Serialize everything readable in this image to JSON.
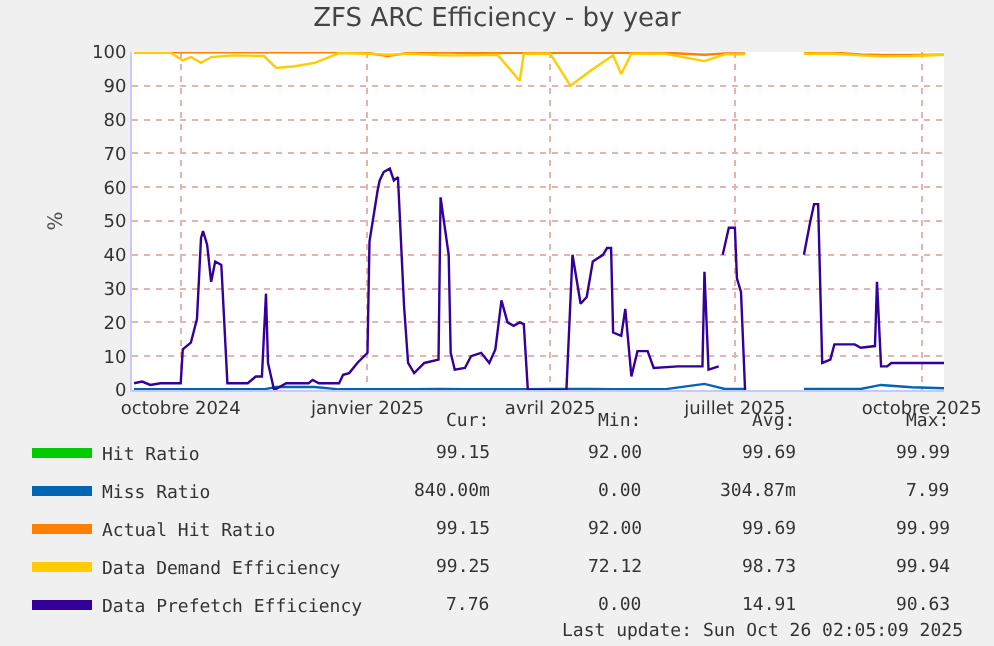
{
  "chart_data": {
    "type": "line",
    "title": "ZFS ARC Efficiency - by year",
    "ylabel": "%",
    "x": [
      "2024-09-22",
      "2024-10-10",
      "2024-10-16",
      "2024-10-20",
      "2024-10-25",
      "2024-10-30",
      "2024-11-10",
      "2024-11-25",
      "2024-12-01",
      "2024-12-10",
      "2024-12-20",
      "2025-01-01",
      "2025-01-15",
      "2025-01-25",
      "2025-02-05",
      "2025-02-20",
      "2025-03-05",
      "2025-03-20",
      "2025-03-31",
      "2025-04-02",
      "2025-04-15",
      "2025-04-25",
      "2025-05-05",
      "2025-05-16",
      "2025-05-20",
      "2025-05-25",
      "2025-06-10",
      "2025-06-30",
      "2025-07-10",
      "2025-07-20",
      "2025-07-21",
      "2025-08-18",
      "2025-09-01",
      "2025-09-15",
      "2025-09-25",
      "2025-10-10",
      "2025-10-26"
    ],
    "series": [
      {
        "name": "Hit Ratio",
        "color": "#00cc00",
        "values": [
          null,
          null,
          null,
          null,
          null,
          null,
          null,
          null,
          null,
          null,
          null,
          null,
          null,
          null,
          null,
          null,
          null,
          null,
          null,
          null,
          null,
          null,
          null,
          null,
          null,
          null,
          null,
          null,
          null,
          null,
          null,
          null,
          null,
          null,
          null,
          null,
          null
        ]
      },
      {
        "name": "Miss Ratio",
        "color": "#0066b3",
        "values": [
          0.2,
          0.2,
          0.2,
          0.2,
          0.2,
          0.2,
          0.2,
          0.2,
          0.9,
          0.9,
          0.9,
          0.2,
          0.2,
          0.2,
          0.2,
          0.3,
          0.2,
          0.2,
          0.2,
          0.2,
          0.3,
          0.3,
          0.3,
          0.2,
          0.2,
          0.2,
          0.2,
          1.8,
          0.3,
          0.3,
          null,
          0.3,
          0.3,
          0.3,
          1.5,
          0.8,
          0.5
        ]
      },
      {
        "name": "Actual Hit Ratio",
        "color": "#ff8000",
        "values": [
          99.9,
          99.9,
          99.9,
          99.9,
          99.9,
          99.9,
          99.9,
          99.9,
          99.9,
          99.9,
          99.9,
          99.9,
          99.7,
          98.8,
          99.8,
          99.9,
          99.7,
          99.7,
          99.8,
          99.8,
          99.8,
          99.8,
          99.8,
          99.8,
          99.8,
          99.8,
          99.8,
          99.2,
          99.6,
          99.6,
          null,
          99.7,
          99.8,
          99.3,
          99.1,
          99.1,
          99.2
        ]
      },
      {
        "name": "Data Demand Efficiency",
        "color": "#ffcc00",
        "values": [
          99.8,
          99.8,
          97.5,
          98.5,
          96.8,
          98.5,
          99,
          98.8,
          95.3,
          95.8,
          96.8,
          99.7,
          99.5,
          99.2,
          99.5,
          99,
          99,
          99.2,
          91.5,
          99.5,
          99.5,
          90,
          94.5,
          99,
          93.5,
          99.5,
          99.5,
          97.3,
          99.3,
          99.3,
          null,
          99.5,
          99.5,
          99,
          98.7,
          98.8,
          99.2
        ]
      },
      {
        "name": "Data Prefetch Efficiency",
        "color": "#330099",
        "x": [
          "2024-09-22",
          "2024-09-26",
          "2024-09-30",
          "2024-10-05",
          "2024-10-15",
          "2024-10-16",
          "2024-10-20",
          "2024-10-23",
          "2024-10-25",
          "2024-10-26",
          "2024-10-28",
          "2024-10-30",
          "2024-11-01",
          "2024-11-04",
          "2024-11-07",
          "2024-11-17",
          "2024-11-21",
          "2024-11-24",
          "2024-11-26",
          "2024-11-27",
          "2024-11-30",
          "2024-12-06",
          "2024-12-17",
          "2024-12-19",
          "2024-12-22",
          "2025-01-01",
          "2025-01-03",
          "2025-01-06",
          "2025-01-10",
          "2025-01-15",
          "2025-01-16",
          "2025-01-20",
          "2025-01-21",
          "2025-01-23",
          "2025-01-26",
          "2025-01-28",
          "2025-01-30",
          "2025-02-02",
          "2025-02-04",
          "2025-02-07",
          "2025-02-12",
          "2025-02-19",
          "2025-02-20",
          "2025-02-24",
          "2025-02-25",
          "2025-02-27",
          "2025-03-04",
          "2025-03-07",
          "2025-03-12",
          "2025-03-16",
          "2025-03-19",
          "2025-03-22",
          "2025-03-25",
          "2025-03-28",
          "2025-03-31",
          "2025-04-02",
          "2025-04-04",
          "2025-04-23",
          "2025-04-26",
          "2025-04-30",
          "2025-05-03",
          "2025-05-06",
          "2025-05-11",
          "2025-05-13",
          "2025-05-15",
          "2025-05-16",
          "2025-05-20",
          "2025-05-22",
          "2025-05-25",
          "2025-05-28",
          "2025-06-02",
          "2025-06-05",
          "2025-06-17",
          "2025-06-29",
          "2025-06-30",
          "2025-07-02",
          "2025-07-07",
          "2025-07-08",
          "2025-07-09",
          "2025-07-12",
          "2025-07-15",
          "2025-07-16",
          "2025-07-18",
          "2025-07-20",
          "2025-07-21",
          "2025-08-18",
          "2025-08-21",
          "2025-08-23",
          "2025-08-25",
          "2025-08-27",
          "2025-08-31",
          "2025-09-02",
          "2025-09-12",
          "2025-09-15",
          "2025-09-22",
          "2025-09-23",
          "2025-09-25",
          "2025-09-28",
          "2025-09-30",
          "2025-10-26"
        ],
        "values": [
          2,
          2.5,
          1.5,
          2,
          2,
          12,
          14,
          21,
          45,
          47,
          43,
          32,
          38,
          37,
          2,
          2,
          4,
          4,
          28.5,
          8,
          0,
          2,
          2,
          3,
          2,
          2,
          4.5,
          5,
          8,
          11,
          44,
          59,
          62,
          64.5,
          65.5,
          62,
          63,
          25,
          8,
          5,
          8,
          9,
          57,
          40,
          11,
          6,
          6.5,
          10,
          11,
          8,
          12,
          26.5,
          20,
          19,
          20,
          19.5,
          0,
          0,
          40,
          25.5,
          27.5,
          38,
          40,
          42,
          42,
          17,
          16,
          24,
          4,
          11.5,
          11.5,
          6.5,
          7,
          7,
          35,
          6,
          7,
          null,
          40,
          48,
          48,
          33,
          29,
          0,
          null,
          40,
          49.5,
          55,
          55,
          8,
          9,
          13.5,
          13.5,
          12.5,
          13,
          32,
          7,
          7,
          8,
          8
        ]
      }
    ],
    "xlim": [
      "2024-09-21",
      "2025-10-26"
    ],
    "xticks": [
      {
        "value": "2024-10-15",
        "label": "octobre 2024"
      },
      {
        "value": "2025-01-15",
        "label": "janvier 2025"
      },
      {
        "value": "2025-04-15",
        "label": "avril 2025"
      },
      {
        "value": "2025-07-15",
        "label": "juillet 2025"
      },
      {
        "value": "2025-10-15",
        "label": "octobre 2025"
      }
    ],
    "ylim": [
      0,
      100
    ],
    "yticks": [
      0,
      10,
      20,
      30,
      40,
      50,
      60,
      70,
      80,
      90,
      100
    ],
    "grid": true,
    "legend": "bottom left",
    "marker": "none",
    "line_style": "solid",
    "annotations": [
      "Cur:",
      "Min:",
      "Avg:",
      "Max:",
      "99.15",
      "92.00",
      "99.69",
      "99.99",
      "840.00m",
      "0.00",
      "304.87m",
      "7.99",
      "99.15",
      "92.00",
      "99.69",
      "99.99",
      "99.25",
      "72.12",
      "98.73",
      "99.94",
      "7.76",
      "0.00",
      "14.91",
      "90.63",
      "Last update: Sun Oct 26 02:05:09 2025"
    ]
  }
}
